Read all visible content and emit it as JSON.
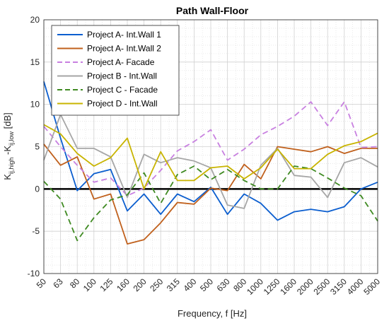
{
  "chart_data": {
    "type": "line",
    "title": "Path Wall-Floor",
    "xlabel": "Frequency, f [Hz]",
    "ylabel_parts": {
      "k1": "K",
      "sub1": "ij,high",
      "mid": " -K",
      "sub2": "ij,low",
      "unit": "  [dB]"
    },
    "categories": [
      "50",
      "63",
      "80",
      "100",
      "125",
      "160",
      "200",
      "250",
      "315",
      "400",
      "500",
      "630",
      "800",
      "1000",
      "1250",
      "1600",
      "2000",
      "2500",
      "3150",
      "4000",
      "5000"
    ],
    "ylim": [
      -10,
      20
    ],
    "yticks": [
      -10,
      -5,
      0,
      5,
      10,
      15,
      20
    ],
    "grid": true,
    "minor_grid": true,
    "legend_position": "top-left",
    "zero_line": true,
    "series": [
      {
        "name": "Project A- Int.Wall 1",
        "color": "#0b5ecf",
        "dash": "solid",
        "values": [
          12.7,
          6.0,
          -0.2,
          1.8,
          2.3,
          -2.6,
          -0.6,
          -3.0,
          -0.6,
          -1.5,
          0.2,
          -3.0,
          -0.6,
          -1.7,
          -3.7,
          -2.7,
          -2.4,
          -2.7,
          -2.1,
          0.0,
          0.8
        ]
      },
      {
        "name": "Project A- Int.Wall 2",
        "color": "#c0601c",
        "dash": "solid",
        "values": [
          5.3,
          2.8,
          3.8,
          -1.2,
          -0.6,
          -6.5,
          -6.0,
          -4.0,
          -1.6,
          -1.8,
          0.1,
          -0.2,
          2.9,
          1.2,
          5.0,
          4.7,
          4.4,
          5.0,
          4.2,
          4.8,
          4.8
        ]
      },
      {
        "name": "Project A- Facade",
        "color": "#c880e0",
        "dash": "dashed",
        "values": [
          7.4,
          5.0,
          2.8,
          0.8,
          1.3,
          -0.8,
          0.1,
          2.2,
          4.5,
          5.6,
          7.0,
          3.4,
          4.7,
          6.4,
          7.4,
          8.6,
          10.3,
          7.5,
          10.3,
          4.9,
          5.0
        ]
      },
      {
        "name": "Project B - Int.Wall",
        "color": "#a6a6a6",
        "dash": "solid",
        "values": [
          3.4,
          8.8,
          4.8,
          4.8,
          3.8,
          -1.0,
          4.1,
          3.1,
          3.7,
          3.3,
          2.5,
          -1.9,
          -2.3,
          2.8,
          4.8,
          1.6,
          1.4,
          -1.0,
          3.1,
          3.7,
          2.6
        ]
      },
      {
        "name": "Project C - Facade",
        "color": "#3f8a22",
        "dash": "dashed",
        "values": [
          0.9,
          -1.2,
          -6.1,
          -3.4,
          -1.3,
          -0.7,
          1.9,
          -1.7,
          1.7,
          2.7,
          1.1,
          2.3,
          1.0,
          0.0,
          0.0,
          2.7,
          2.4,
          1.3,
          0.1,
          -0.8,
          -3.8
        ]
      },
      {
        "name": "Project D - Int.Wall",
        "color": "#c8b400",
        "dash": "solid",
        "values": [
          7.6,
          6.5,
          4.2,
          2.7,
          3.7,
          6.0,
          0.0,
          4.4,
          1.0,
          1.0,
          2.5,
          2.7,
          1.2,
          2.5,
          4.7,
          2.4,
          2.4,
          4.1,
          5.1,
          5.6,
          6.6
        ]
      }
    ]
  }
}
